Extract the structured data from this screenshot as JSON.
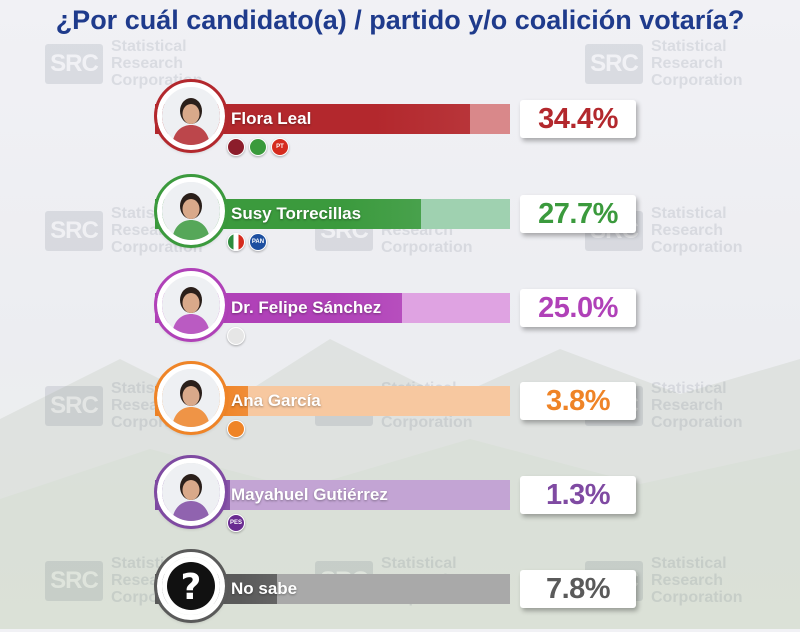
{
  "title": "¿Por cuál candidato(a) / partido y/o coalición votaría?",
  "watermark": {
    "mark": "SRC",
    "lines": [
      "Statistical",
      "Research",
      "Corporation"
    ]
  },
  "chart_data": {
    "type": "bar",
    "categories": [
      "Flora Leal",
      "Susy Torrecillas",
      "Dr. Felipe Sánchez",
      "Ana García",
      "Mayahuel Gutiérrez",
      "No sabe"
    ],
    "values": [
      34.4,
      27.7,
      25.0,
      3.8,
      1.3,
      7.8
    ],
    "value_labels": [
      "34.4%",
      "27.7%",
      "25.0%",
      "3.8%",
      "1.3%",
      "7.8%"
    ],
    "unit": "%",
    "orientation": "horizontal",
    "xlim": [
      0,
      40
    ]
  },
  "colors": {
    "title": "#1f3b8c",
    "bars": [
      "#b3282d",
      "#3b9a3d",
      "#b041b8",
      "#ef8427",
      "#7f4aa2",
      "#5a5a5a"
    ],
    "bars_light": [
      "#d9888a",
      "#9fd1b0",
      "#dfa3e2",
      "#f7c8a0",
      "#c3a4d4",
      "#a9a9a9"
    ]
  },
  "rows": [
    {
      "avatar_icon": "candidate-portrait",
      "party_logos": [
        {
          "icon": "morena-logo",
          "label": "",
          "color": "#8c1d2b"
        },
        {
          "icon": "pvem-logo",
          "label": "",
          "color": "#3a9a3c"
        },
        {
          "icon": "pt-logo",
          "label": "PT",
          "color": "#d52b1e"
        }
      ]
    },
    {
      "avatar_icon": "candidate-portrait",
      "party_logos": [
        {
          "icon": "pri-logo",
          "label": "",
          "color": "#ffffff"
        },
        {
          "icon": "pan-logo",
          "label": "PAN",
          "color": "#1d4fa0"
        }
      ]
    },
    {
      "avatar_icon": "candidate-portrait",
      "party_logos": [
        {
          "icon": "fuerza-mexico-logo",
          "label": "",
          "color": "#e6e6e6"
        }
      ]
    },
    {
      "avatar_icon": "candidate-portrait",
      "party_logos": [
        {
          "icon": "movimiento-ciudadano-logo",
          "label": "",
          "color": "#ef8427"
        }
      ]
    },
    {
      "avatar_icon": "candidate-portrait",
      "party_logos": [
        {
          "icon": "pes-logo",
          "label": "PES",
          "color": "#6a2c91"
        }
      ]
    },
    {
      "avatar_icon": "question-mark-icon",
      "party_logos": []
    }
  ]
}
